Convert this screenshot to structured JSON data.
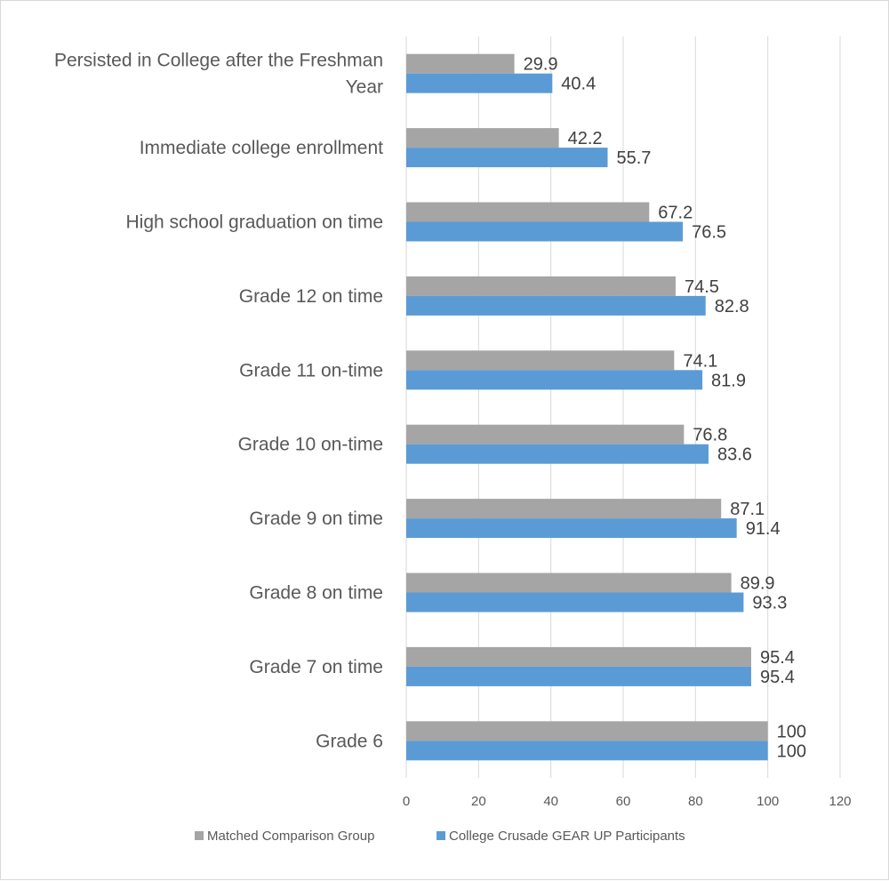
{
  "chart_data": {
    "type": "bar",
    "orientation": "horizontal",
    "categories": [
      [
        "Persisted in College after the Freshman",
        "Year"
      ],
      [
        "Immediate college enrollment"
      ],
      [
        "High school graduation on time"
      ],
      [
        "Grade 12 on time"
      ],
      [
        "Grade 11 on-time"
      ],
      [
        "Grade 10 on-time"
      ],
      [
        "Grade 9 on time"
      ],
      [
        "Grade 8 on time"
      ],
      [
        "Grade 7 on time"
      ],
      [
        "Grade 6"
      ]
    ],
    "series": [
      {
        "name": "Matched Comparison Group",
        "color": "#a5a5a5",
        "values": [
          29.9,
          42.2,
          67.2,
          74.5,
          74.1,
          76.8,
          87.1,
          89.9,
          95.4,
          100
        ],
        "labels": [
          "29.9",
          "42.2",
          "67.2",
          "74.5",
          "74.1",
          "76.8",
          "87.1",
          "89.9",
          "95.4",
          "100"
        ]
      },
      {
        "name": "College Crusade GEAR UP Participants",
        "color": "#5b9bd5",
        "values": [
          40.4,
          55.7,
          76.5,
          82.8,
          81.9,
          83.6,
          91.4,
          93.3,
          95.4,
          100
        ],
        "labels": [
          "40.4",
          "55.7",
          "76.5",
          "82.8",
          "81.9",
          "83.6",
          "91.4",
          "93.3",
          "95.4",
          "100"
        ]
      }
    ],
    "xlim": [
      0,
      120
    ],
    "xticks": [
      "0",
      "20",
      "40",
      "60",
      "80",
      "100",
      "120"
    ],
    "grid": true,
    "legend_position": "bottom"
  }
}
